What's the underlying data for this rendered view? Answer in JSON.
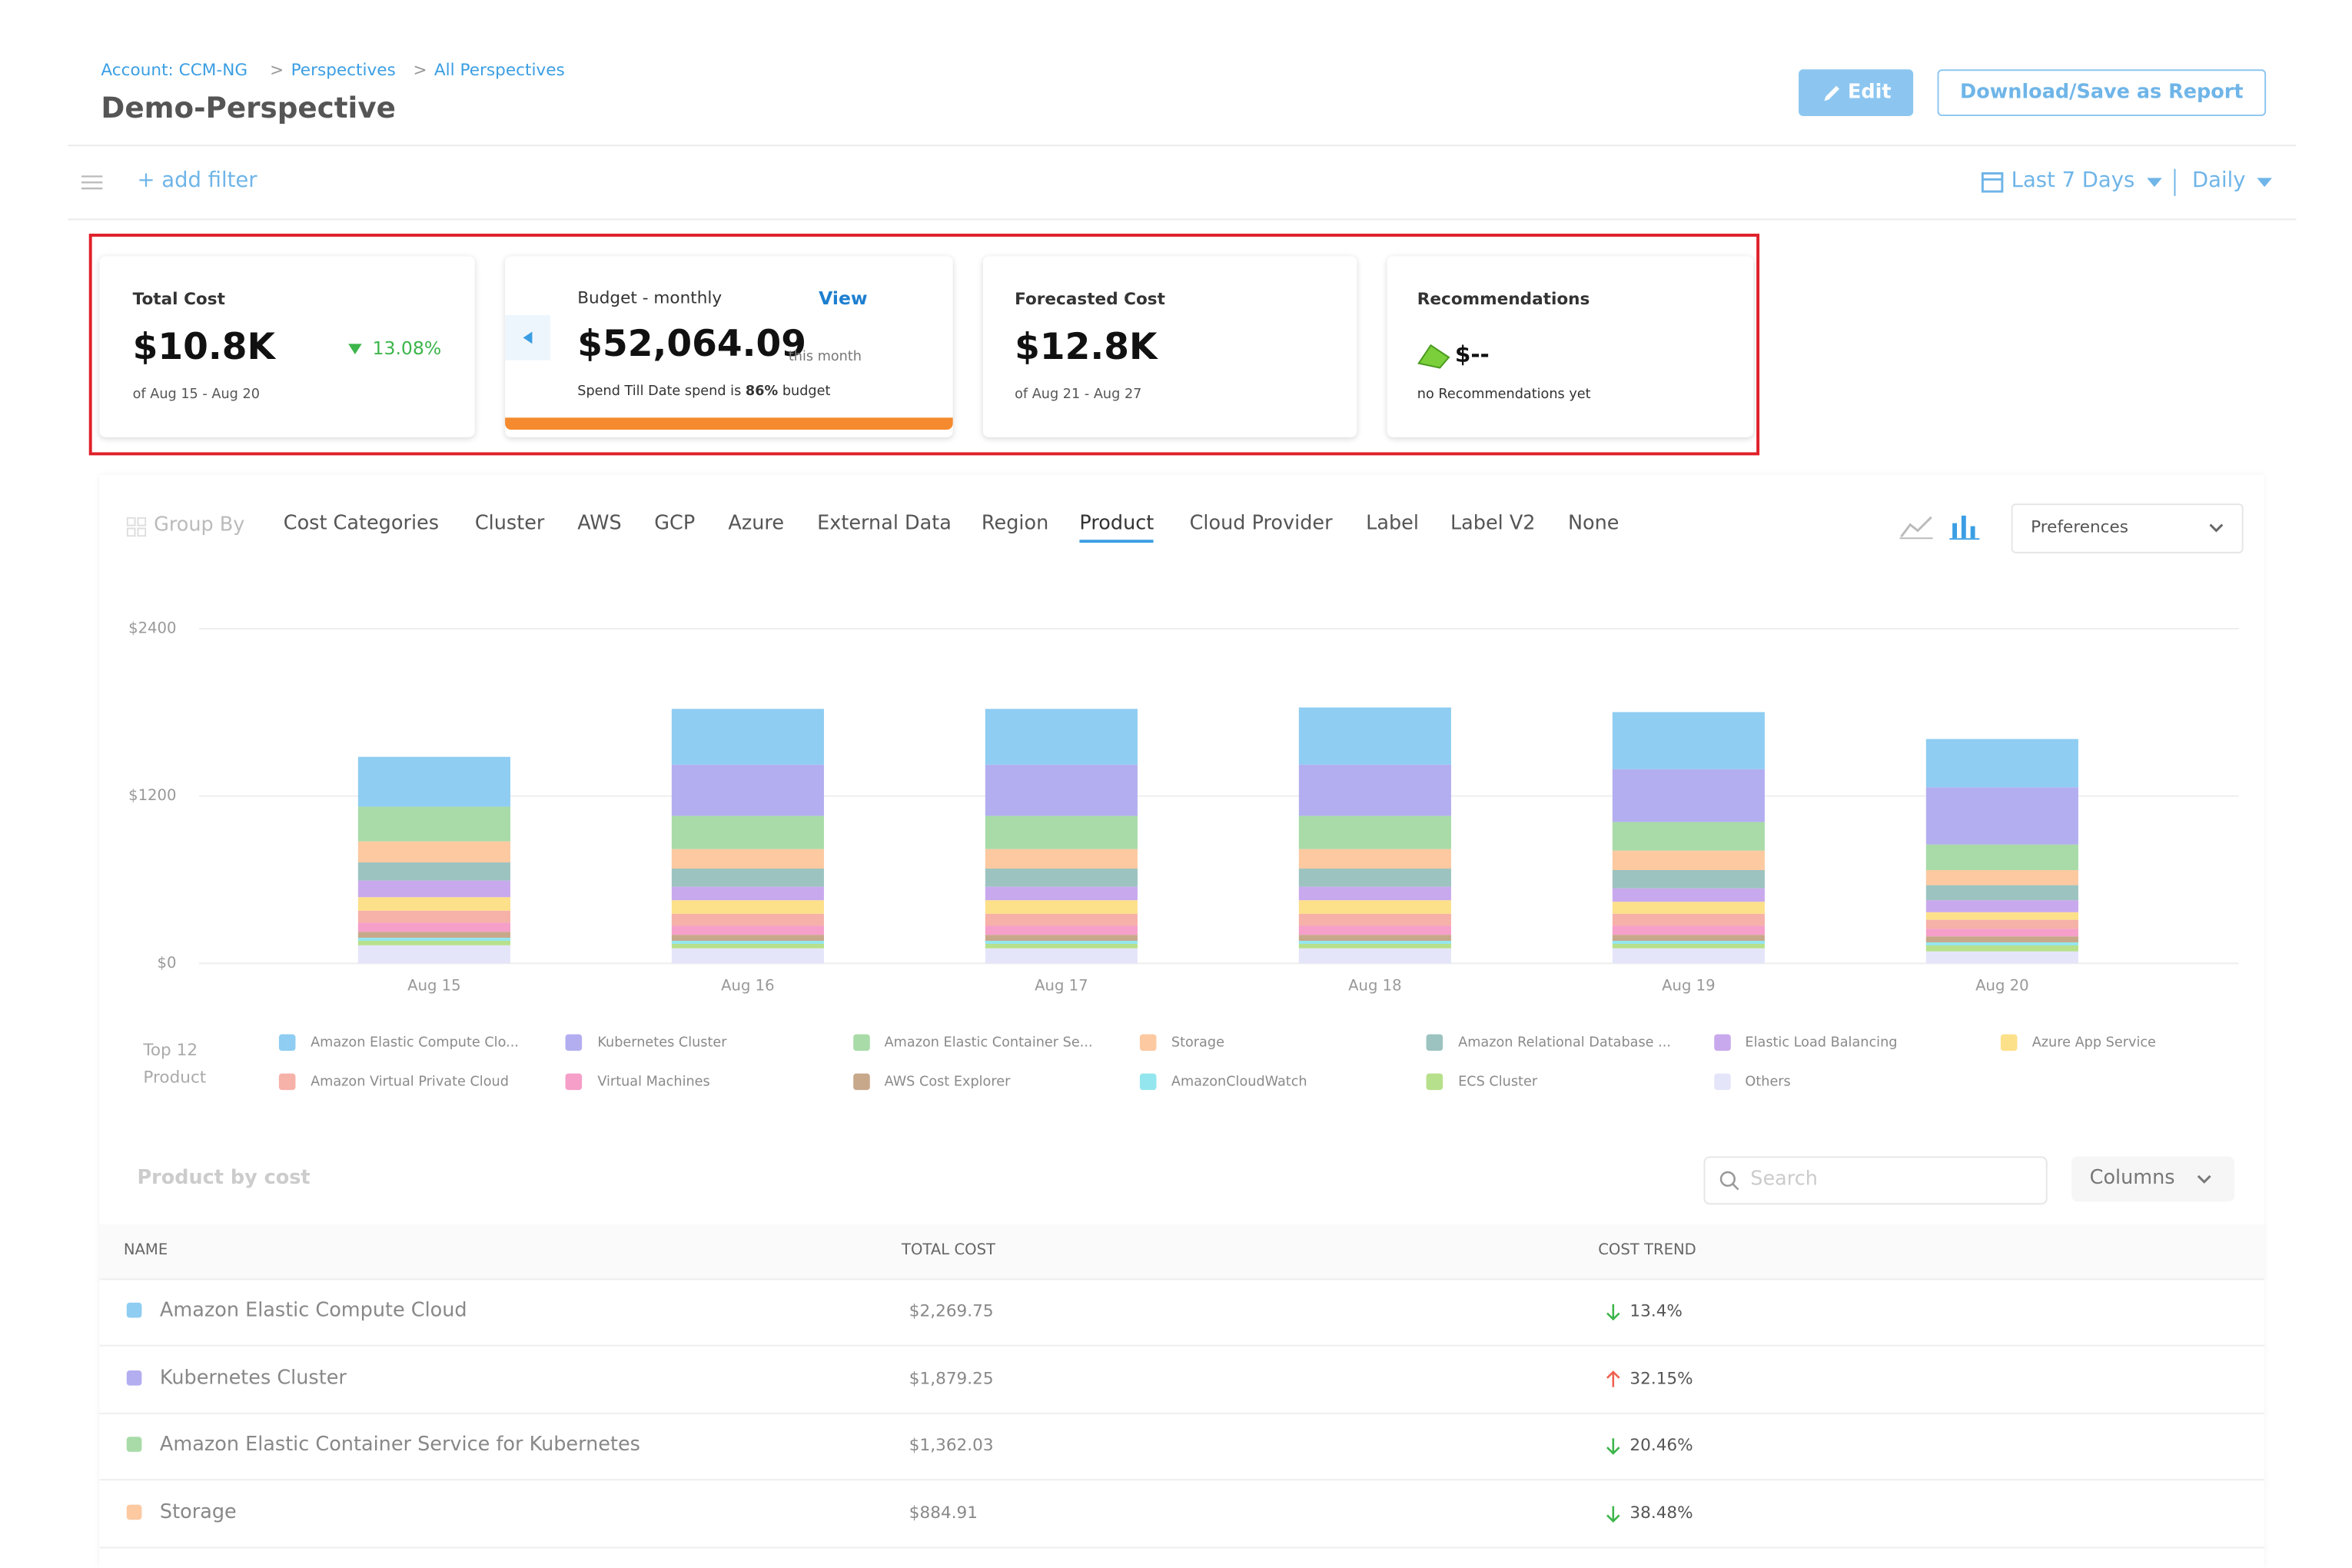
{
  "header": {
    "breadcrumbs": [
      "Account: CCM-NG",
      "Perspectives",
      "All Perspectives"
    ],
    "title": "Demo-Perspective",
    "edit_button": "Edit",
    "download_button": "Download/Save as Report"
  },
  "filters": {
    "add_filter": "+ add filter",
    "time_range": "Last 7 Days",
    "granularity": "Daily"
  },
  "cards": {
    "total_cost": {
      "title": "Total Cost",
      "value": "$10.8K",
      "change": "13.08%",
      "period": "of Aug 15 - Aug 20"
    },
    "budget": {
      "title": "Budget - monthly",
      "link": "View",
      "value": "$52,064.09",
      "unit": "this month",
      "spend_text": "Spend Till Date spend is",
      "spend_percent": "86%",
      "spend_suffix": "budget"
    },
    "forecast": {
      "title": "Forecasted Cost",
      "value": "$12.8K",
      "period": "of Aug 21 - Aug 27"
    },
    "recommendations": {
      "title": "Recommendations",
      "value": "$--",
      "note": "no Recommendations yet"
    }
  },
  "group_by": {
    "label": "Group By",
    "tabs": [
      {
        "label": "Cost Categories",
        "active": false
      },
      {
        "label": "Cluster",
        "active": false
      },
      {
        "label": "AWS",
        "active": false
      },
      {
        "label": "GCP",
        "active": false
      },
      {
        "label": "Azure",
        "active": false
      },
      {
        "label": "External Data",
        "active": false
      },
      {
        "label": "Region",
        "active": false
      },
      {
        "label": "Product",
        "active": true
      },
      {
        "label": "Cloud Provider",
        "active": false
      },
      {
        "label": "Label",
        "active": false
      },
      {
        "label": "Label V2",
        "active": false
      },
      {
        "label": "None",
        "active": false
      }
    ],
    "preferences": "Preferences"
  },
  "chart_data": {
    "type": "stacked-bar",
    "legend_title": "Top 12 Product",
    "categories": [
      "Aug 15",
      "Aug 16",
      "Aug 17",
      "Aug 18",
      "Aug 19",
      "Aug 20"
    ],
    "ylim": [
      0,
      2400
    ],
    "yticks": [
      {
        "value": 0,
        "label": "$0"
      },
      {
        "value": 1200,
        "label": "$1200"
      },
      {
        "value": 2400,
        "label": "$2400"
      }
    ],
    "grid": true,
    "series": [
      {
        "name": "Amazon Elastic Compute Clo...",
        "color": "#8fcdf2",
        "values": [
          357,
          400,
          400,
          410,
          410,
          346
        ]
      },
      {
        "name": "Kubernetes Cluster",
        "color": "#b3aef0",
        "values": [
          0,
          367,
          367,
          367,
          378,
          410
        ]
      },
      {
        "name": "Amazon Elastic Container Se...",
        "color": "#a8dba8",
        "values": [
          249,
          238,
          238,
          238,
          205,
          184
        ]
      },
      {
        "name": "Storage",
        "color": "#fcc9a1",
        "values": [
          151,
          140,
          140,
          140,
          140,
          108
        ]
      },
      {
        "name": "Amazon Relational Database ...",
        "color": "#9cc3c0",
        "values": [
          130,
          130,
          130,
          130,
          130,
          108
        ]
      },
      {
        "name": "Elastic Load Balancing",
        "color": "#c9a9ed",
        "values": [
          119,
          97,
          97,
          97,
          97,
          86
        ]
      },
      {
        "name": "Azure App Service",
        "color": "#fde08a",
        "values": [
          97,
          97,
          97,
          97,
          86,
          54
        ]
      },
      {
        "name": "Amazon Virtual Private Cloud",
        "color": "#f6b1a8",
        "values": [
          86,
          86,
          86,
          86,
          86,
          65
        ]
      },
      {
        "name": "Virtual Machines",
        "color": "#f59fc9",
        "values": [
          65,
          65,
          65,
          65,
          65,
          54
        ]
      },
      {
        "name": "AWS Cost Explorer",
        "color": "#c8a88a",
        "values": [
          43,
          43,
          43,
          43,
          43,
          43
        ]
      },
      {
        "name": "AmazonCloudWatch",
        "color": "#94e6ee",
        "values": [
          22,
          22,
          22,
          22,
          22,
          22
        ]
      },
      {
        "name": "ECS Cluster",
        "color": "#b7e08c",
        "values": [
          32,
          32,
          32,
          32,
          32,
          43
        ]
      },
      {
        "name": "Others",
        "color": "#e5e5fa",
        "values": [
          130,
          108,
          108,
          108,
          108,
          86
        ]
      }
    ]
  },
  "table": {
    "title": "Product by cost",
    "search_placeholder": "Search",
    "columns_button": "Columns",
    "headers": [
      "NAME",
      "TOTAL COST",
      "COST TREND"
    ],
    "rows": [
      {
        "name": "Amazon Elastic Compute Cloud",
        "color": "#8fcdf2",
        "total_cost": "$2,269.75",
        "trend": "13.4%",
        "direction": "down"
      },
      {
        "name": "Kubernetes Cluster",
        "color": "#b3aef0",
        "total_cost": "$1,879.25",
        "trend": "32.15%",
        "direction": "up"
      },
      {
        "name": "Amazon Elastic Container Service for Kubernetes",
        "color": "#a8dba8",
        "total_cost": "$1,362.03",
        "trend": "20.46%",
        "direction": "down"
      },
      {
        "name": "Storage",
        "color": "#fcc9a1",
        "total_cost": "$884.91",
        "trend": "38.48%",
        "direction": "down"
      }
    ]
  }
}
